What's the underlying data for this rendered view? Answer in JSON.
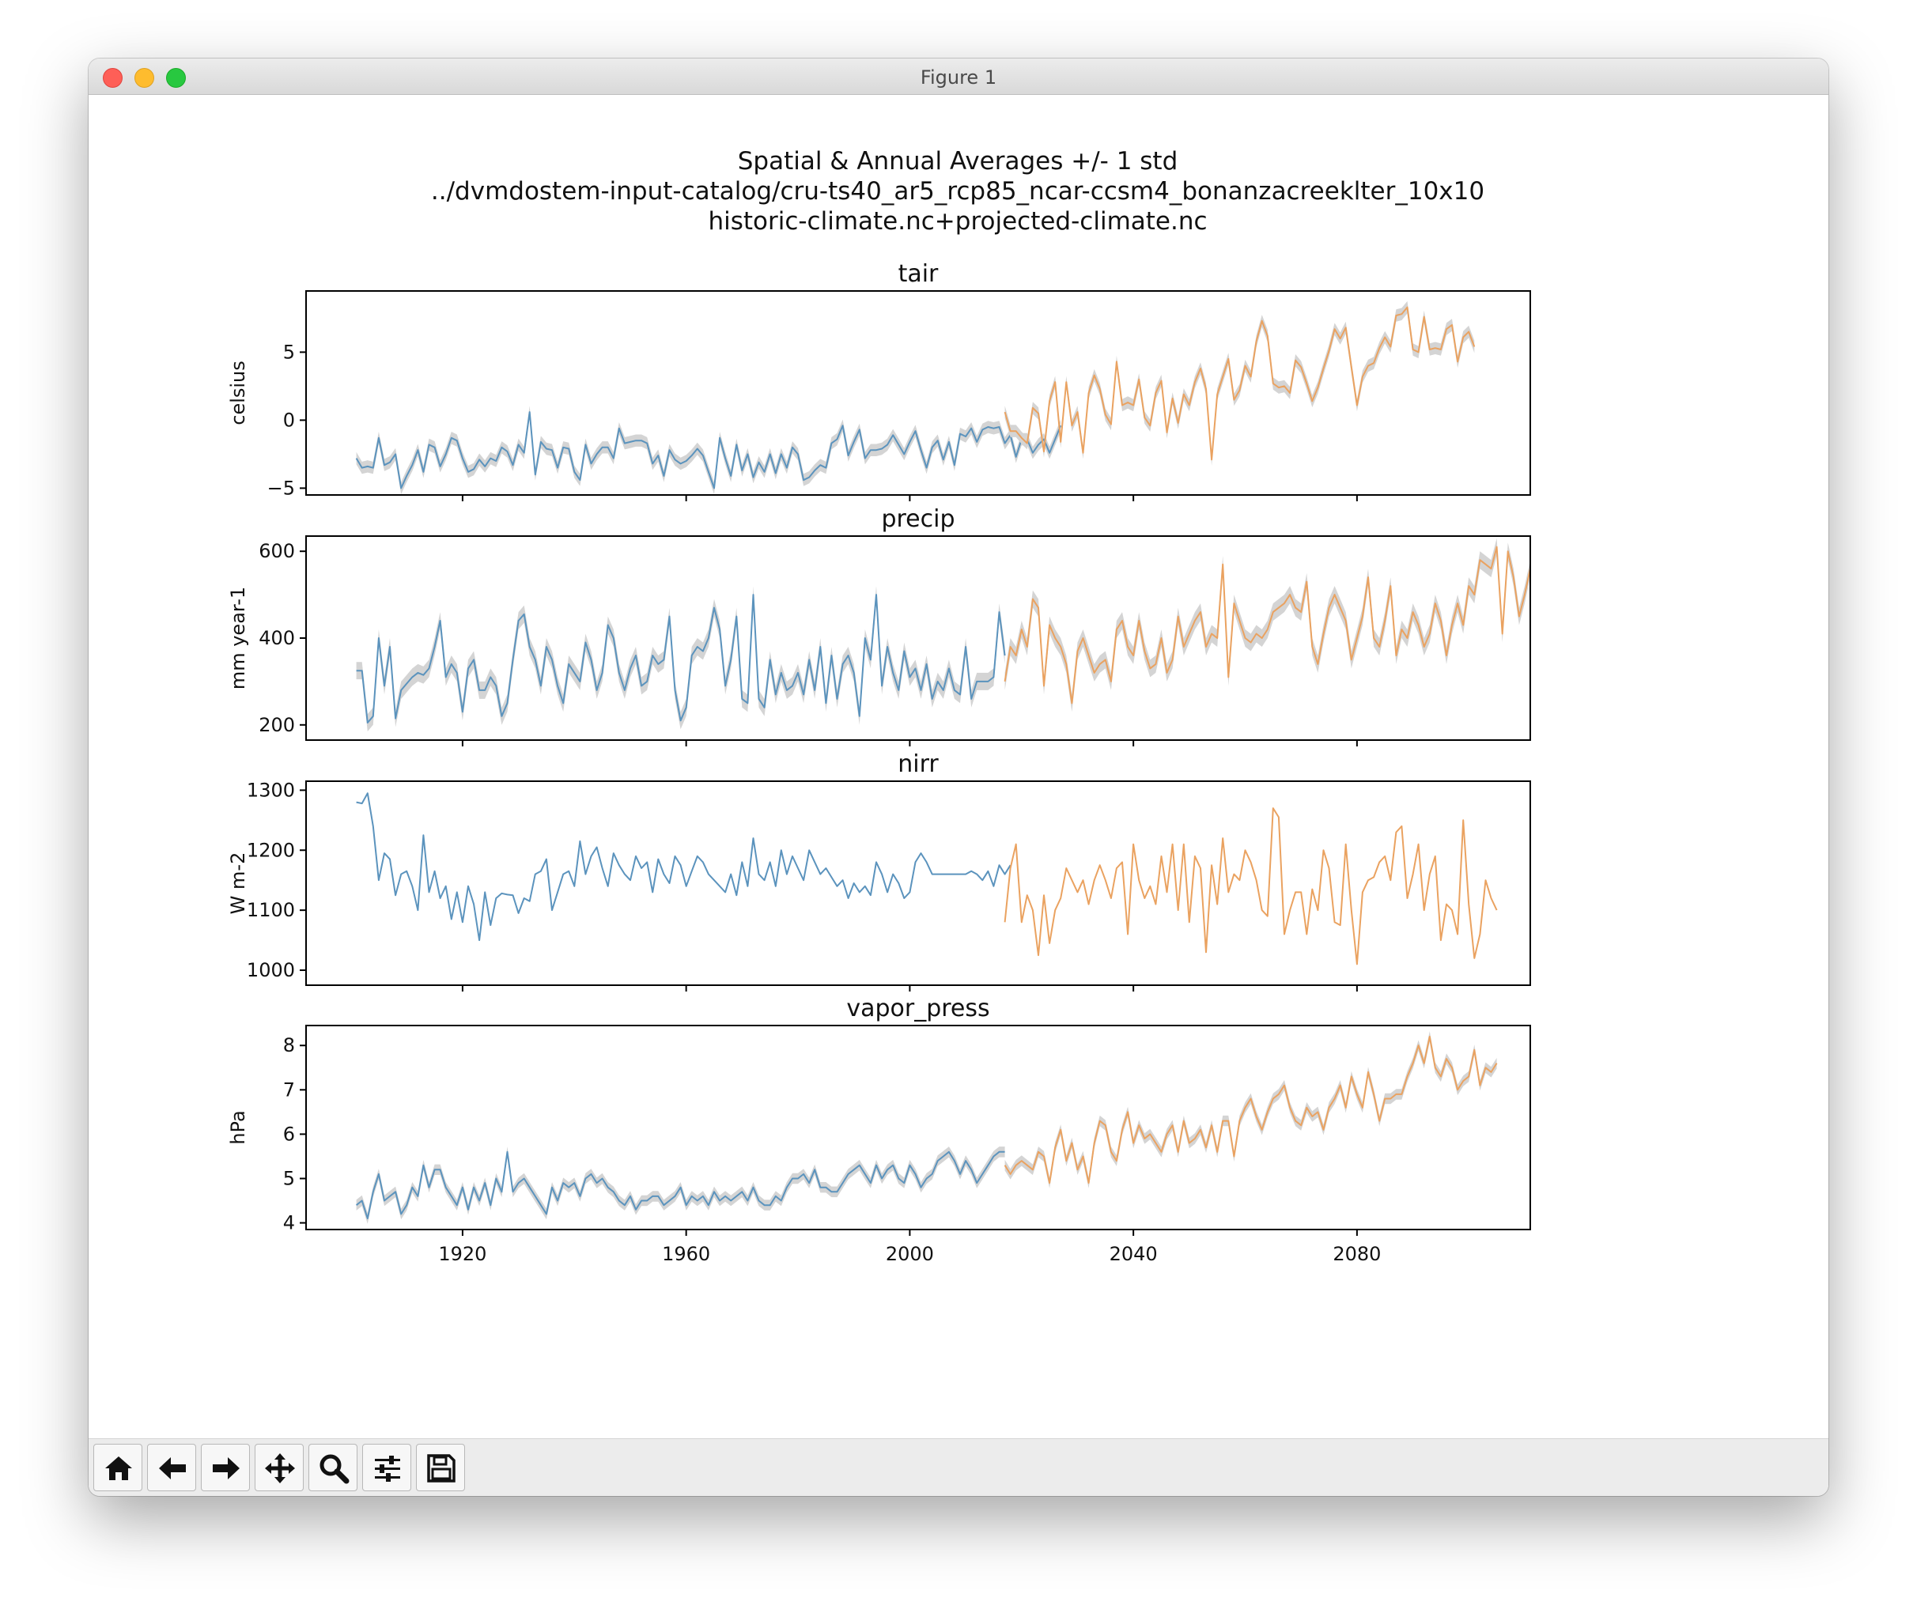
{
  "window": {
    "title": "Figure 1",
    "controls": [
      "close",
      "minimize",
      "zoom"
    ]
  },
  "figure": {
    "suptitle": [
      "Spatial & Annual Averages +/- 1 std",
      "../dvmdostem-input-catalog/cru-ts40_ar5_rcp85_ncar-ccsm4_bonanzacreeklter_10x10",
      "historic-climate.nc+projected-climate.nc"
    ],
    "colors": {
      "historic": "#5b93bd",
      "projected": "#eaa260",
      "std_band": "#d4d4d4"
    }
  },
  "toolbar": {
    "buttons": [
      {
        "name": "home-button",
        "icon": "home-icon"
      },
      {
        "name": "back-button",
        "icon": "arrow-left-icon"
      },
      {
        "name": "forward-button",
        "icon": "arrow-right-icon"
      },
      {
        "name": "pan-button",
        "icon": "move-icon"
      },
      {
        "name": "zoom-button",
        "icon": "magnifier-icon"
      },
      {
        "name": "configure-subplots-button",
        "icon": "sliders-icon"
      },
      {
        "name": "save-button",
        "icon": "floppy-disk-icon"
      }
    ]
  },
  "chart_data": [
    {
      "type": "line",
      "title": "tair",
      "ylabel": "celsius",
      "xlim": [
        1892,
        2111
      ],
      "ylim": [
        -5.5,
        9.5
      ],
      "yticks": [
        -5,
        0,
        5
      ],
      "xticks": [
        1920,
        1960,
        2000,
        2040,
        2080
      ],
      "show_xticklabels": false,
      "std": 0.45,
      "series": [
        {
          "role": "historic",
          "x_start": 1901,
          "values": [
            -2.8,
            -3.5,
            -3.4,
            -3.5,
            -1.3,
            -3.3,
            -3.1,
            -2.5,
            -5.0,
            -4.1,
            -3.3,
            -2.2,
            -3.8,
            -1.8,
            -2.0,
            -3.4,
            -2.5,
            -1.3,
            -1.5,
            -2.8,
            -3.8,
            -3.6,
            -2.9,
            -3.4,
            -2.8,
            -3.0,
            -2.0,
            -2.3,
            -3.3,
            -1.8,
            -2.4,
            0.6,
            -4.0,
            -1.6,
            -2.1,
            -2.2,
            -3.5,
            -2.0,
            -2.1,
            -3.8,
            -4.4,
            -1.8,
            -3.2,
            -2.5,
            -2.0,
            -2.0,
            -2.8,
            -0.6,
            -1.7,
            -1.6,
            -1.5,
            -1.5,
            -1.7,
            -3.2,
            -2.6,
            -4.1,
            -2.2,
            -2.9,
            -3.2,
            -3.0,
            -2.6,
            -2.1,
            -2.6,
            -3.8,
            -5.0,
            -1.3,
            -2.8,
            -4.1,
            -1.8,
            -3.7,
            -2.5,
            -4.2,
            -3.1,
            -3.8,
            -2.5,
            -3.9,
            -2.5,
            -3.5,
            -2.0,
            -2.5,
            -4.4,
            -4.2,
            -3.7,
            -3.3,
            -3.5,
            -1.7,
            -1.4,
            -0.4,
            -2.6,
            -1.6,
            -0.7,
            -2.8,
            -2.2,
            -2.2,
            -2.1,
            -1.8,
            -1.1,
            -1.8,
            -2.5,
            -1.6,
            -0.8,
            -2.2,
            -3.5,
            -2.0,
            -1.5,
            -2.9,
            -1.6,
            -3.3,
            -1.0,
            -1.2,
            -0.6,
            -1.6,
            -0.7,
            -0.5,
            -0.6,
            -0.5,
            -1.7,
            -1.1,
            -2.7,
            -1.4,
            -1.4,
            -2.4,
            -1.8,
            -1.4,
            -2.4,
            -1.4,
            -0.4
          ]
        },
        {
          "role": "projected",
          "x_start": 2017,
          "values": [
            0.6,
            -0.8,
            -0.8,
            -1.3,
            -1.7,
            0.9,
            0.5,
            -2.3,
            1.4,
            2.8,
            -1.6,
            2.8,
            -0.4,
            0.6,
            -2.4,
            2.0,
            3.3,
            2.3,
            0.4,
            -0.3,
            4.3,
            1.1,
            1.3,
            1.1,
            3.0,
            0.2,
            -0.4,
            2.0,
            2.9,
            -0.9,
            1.6,
            -0.2,
            1.9,
            1.1,
            2.8,
            3.8,
            2.3,
            -2.9,
            1.9,
            3.2,
            4.5,
            1.5,
            2.2,
            4.0,
            3.2,
            5.8,
            7.3,
            6.2,
            2.7,
            2.4,
            2.5,
            2.0,
            4.4,
            3.9,
            2.7,
            1.4,
            2.4,
            3.8,
            5.1,
            6.7,
            6.0,
            6.8,
            3.9,
            1.1,
            3.2,
            4.0,
            4.2,
            5.3,
            6.1,
            5.4,
            7.7,
            7.8,
            8.3,
            5.2,
            5.0,
            7.6,
            5.2,
            5.3,
            5.2,
            6.7,
            7.0,
            4.3,
            6.1,
            6.5,
            5.4
          ]
        }
      ]
    },
    {
      "type": "line",
      "title": "precip",
      "ylabel": "mm year-1",
      "xlim": [
        1892,
        2111
      ],
      "ylim": [
        165,
        635
      ],
      "yticks": [
        200,
        400,
        600
      ],
      "xticks": [
        1920,
        1960,
        2000,
        2040,
        2080
      ],
      "show_xticklabels": false,
      "std": 20,
      "series": [
        {
          "role": "historic",
          "x_start": 1901,
          "values": [
            325,
            325,
            205,
            220,
            400,
            290,
            380,
            215,
            280,
            295,
            310,
            320,
            315,
            330,
            380,
            440,
            310,
            340,
            320,
            230,
            330,
            350,
            280,
            280,
            310,
            290,
            220,
            250,
            350,
            440,
            455,
            380,
            350,
            290,
            380,
            350,
            290,
            250,
            340,
            320,
            300,
            390,
            350,
            280,
            320,
            430,
            400,
            320,
            280,
            330,
            360,
            290,
            300,
            360,
            340,
            350,
            450,
            280,
            210,
            240,
            360,
            380,
            370,
            400,
            470,
            420,
            290,
            350,
            450,
            260,
            250,
            500,
            260,
            240,
            350,
            270,
            320,
            280,
            290,
            320,
            270,
            350,
            280,
            380,
            250,
            360,
            260,
            340,
            360,
            320,
            220,
            400,
            350,
            500,
            290,
            380,
            320,
            280,
            370,
            310,
            330,
            280,
            340,
            260,
            300,
            280,
            330,
            280,
            270,
            380,
            260,
            300,
            300,
            300,
            310,
            460,
            360
          ]
        },
        {
          "role": "projected",
          "x_start": 2017,
          "values": [
            300,
            380,
            360,
            420,
            380,
            490,
            470,
            290,
            430,
            400,
            380,
            340,
            250,
            370,
            400,
            360,
            320,
            340,
            350,
            300,
            420,
            440,
            380,
            360,
            440,
            370,
            330,
            340,
            400,
            320,
            350,
            450,
            380,
            410,
            440,
            460,
            380,
            410,
            400,
            570,
            310,
            480,
            440,
            400,
            390,
            410,
            400,
            420,
            460,
            470,
            480,
            500,
            470,
            460,
            530,
            380,
            340,
            410,
            470,
            500,
            470,
            440,
            350,
            400,
            450,
            540,
            400,
            380,
            440,
            520,
            360,
            420,
            400,
            460,
            430,
            380,
            410,
            480,
            440,
            360,
            430,
            480,
            430,
            520,
            500,
            580,
            570,
            560,
            610,
            410,
            600,
            540,
            450,
            500,
            560
          ]
        }
      ]
    },
    {
      "type": "line",
      "title": "nirr",
      "ylabel": "W m-2",
      "xlim": [
        1892,
        2111
      ],
      "ylim": [
        975,
        1315
      ],
      "yticks": [
        1000,
        1100,
        1200,
        1300
      ],
      "xticks": [
        1920,
        1960,
        2000,
        2040,
        2080
      ],
      "show_xticklabels": false,
      "std": 0,
      "series": [
        {
          "role": "historic",
          "x_start": 1901,
          "values": [
            1280,
            1278,
            1295,
            1240,
            1150,
            1195,
            1185,
            1125,
            1160,
            1165,
            1140,
            1100,
            1225,
            1130,
            1165,
            1120,
            1140,
            1085,
            1130,
            1080,
            1140,
            1110,
            1050,
            1130,
            1075,
            1120,
            1128,
            1126,
            1125,
            1095,
            1120,
            1115,
            1160,
            1165,
            1185,
            1100,
            1130,
            1160,
            1165,
            1140,
            1215,
            1160,
            1190,
            1205,
            1170,
            1140,
            1195,
            1175,
            1160,
            1150,
            1190,
            1170,
            1180,
            1130,
            1185,
            1160,
            1145,
            1190,
            1175,
            1140,
            1165,
            1190,
            1180,
            1160,
            1150,
            1140,
            1130,
            1160,
            1125,
            1180,
            1140,
            1220,
            1160,
            1150,
            1180,
            1140,
            1200,
            1160,
            1190,
            1170,
            1150,
            1200,
            1180,
            1160,
            1170,
            1155,
            1140,
            1150,
            1120,
            1145,
            1130,
            1140,
            1125,
            1180,
            1160,
            1130,
            1160,
            1145,
            1120,
            1130,
            1180,
            1195,
            1180,
            1160,
            1160,
            1160,
            1160,
            1160,
            1160,
            1160,
            1165,
            1160,
            1150,
            1165,
            1140,
            1175,
            1160,
            1175
          ]
        },
        {
          "role": "projected",
          "x_start": 2017,
          "values": [
            1080,
            1170,
            1210,
            1080,
            1125,
            1100,
            1025,
            1125,
            1045,
            1100,
            1120,
            1170,
            1150,
            1130,
            1150,
            1110,
            1150,
            1175,
            1150,
            1120,
            1170,
            1180,
            1060,
            1210,
            1150,
            1120,
            1140,
            1110,
            1190,
            1130,
            1210,
            1100,
            1210,
            1080,
            1190,
            1170,
            1030,
            1175,
            1110,
            1220,
            1130,
            1160,
            1150,
            1200,
            1180,
            1150,
            1100,
            1090,
            1270,
            1255,
            1060,
            1100,
            1130,
            1130,
            1060,
            1135,
            1100,
            1200,
            1170,
            1080,
            1075,
            1210,
            1100,
            1010,
            1130,
            1150,
            1155,
            1180,
            1190,
            1150,
            1230,
            1240,
            1120,
            1160,
            1210,
            1100,
            1160,
            1190,
            1050,
            1110,
            1100,
            1060,
            1250,
            1110,
            1020,
            1060,
            1150,
            1120,
            1100
          ]
        }
      ]
    },
    {
      "type": "line",
      "title": "vapor_press",
      "ylabel": "hPa",
      "xlim": [
        1892,
        2111
      ],
      "ylim": [
        3.85,
        8.45
      ],
      "yticks": [
        4,
        5,
        6,
        7,
        8
      ],
      "xticks": [
        1920,
        1960,
        2000,
        2040,
        2080
      ],
      "xticklabels": [
        "1920",
        "1960",
        "2000",
        "2040",
        "2080"
      ],
      "show_xticklabels": true,
      "std": 0.12,
      "series": [
        {
          "role": "historic",
          "x_start": 1901,
          "values": [
            4.4,
            4.5,
            4.1,
            4.7,
            5.1,
            4.5,
            4.6,
            4.7,
            4.2,
            4.4,
            4.8,
            4.6,
            5.3,
            4.8,
            5.2,
            5.2,
            4.8,
            4.6,
            4.4,
            4.8,
            4.3,
            4.8,
            4.5,
            4.9,
            4.4,
            5.0,
            4.7,
            5.6,
            4.7,
            4.9,
            5.0,
            4.8,
            4.6,
            4.4,
            4.2,
            4.8,
            4.5,
            4.9,
            4.8,
            4.9,
            4.6,
            5.0,
            5.1,
            4.9,
            5.0,
            4.8,
            4.7,
            4.5,
            4.4,
            4.6,
            4.3,
            4.5,
            4.5,
            4.6,
            4.6,
            4.4,
            4.5,
            4.6,
            4.8,
            4.4,
            4.6,
            4.5,
            4.6,
            4.4,
            4.7,
            4.5,
            4.6,
            4.5,
            4.6,
            4.7,
            4.5,
            4.8,
            4.5,
            4.4,
            4.4,
            4.6,
            4.5,
            4.8,
            5.0,
            5.0,
            5.1,
            4.9,
            5.2,
            4.8,
            4.8,
            4.7,
            4.7,
            4.9,
            5.1,
            5.2,
            5.3,
            5.1,
            4.9,
            5.3,
            5.0,
            5.2,
            5.3,
            5.0,
            4.9,
            5.3,
            5.1,
            4.8,
            5.0,
            5.1,
            5.4,
            5.5,
            5.6,
            5.4,
            5.1,
            5.4,
            5.2,
            4.9,
            5.1,
            5.3,
            5.5,
            5.6,
            5.6
          ]
        },
        {
          "role": "projected",
          "x_start": 2017,
          "values": [
            5.3,
            5.1,
            5.3,
            5.4,
            5.3,
            5.2,
            5.6,
            5.5,
            4.9,
            5.7,
            6.1,
            5.4,
            5.8,
            5.2,
            5.5,
            4.9,
            5.8,
            6.3,
            6.2,
            5.6,
            5.4,
            6.1,
            6.5,
            5.8,
            6.2,
            5.9,
            6.0,
            5.8,
            5.6,
            6.0,
            6.2,
            5.6,
            6.3,
            5.8,
            5.9,
            6.1,
            5.7,
            6.2,
            5.6,
            6.3,
            6.3,
            5.5,
            6.3,
            6.6,
            6.8,
            6.4,
            6.1,
            6.5,
            6.8,
            6.9,
            7.1,
            6.6,
            6.3,
            6.2,
            6.6,
            6.4,
            6.5,
            6.1,
            6.6,
            6.8,
            7.1,
            6.6,
            7.3,
            6.9,
            6.6,
            7.4,
            6.9,
            6.3,
            6.8,
            6.8,
            6.9,
            6.9,
            7.3,
            7.6,
            8.0,
            7.6,
            8.2,
            7.5,
            7.3,
            7.7,
            7.5,
            7.0,
            7.2,
            7.3,
            7.9,
            7.1,
            7.5,
            7.4,
            7.6
          ]
        }
      ]
    }
  ]
}
